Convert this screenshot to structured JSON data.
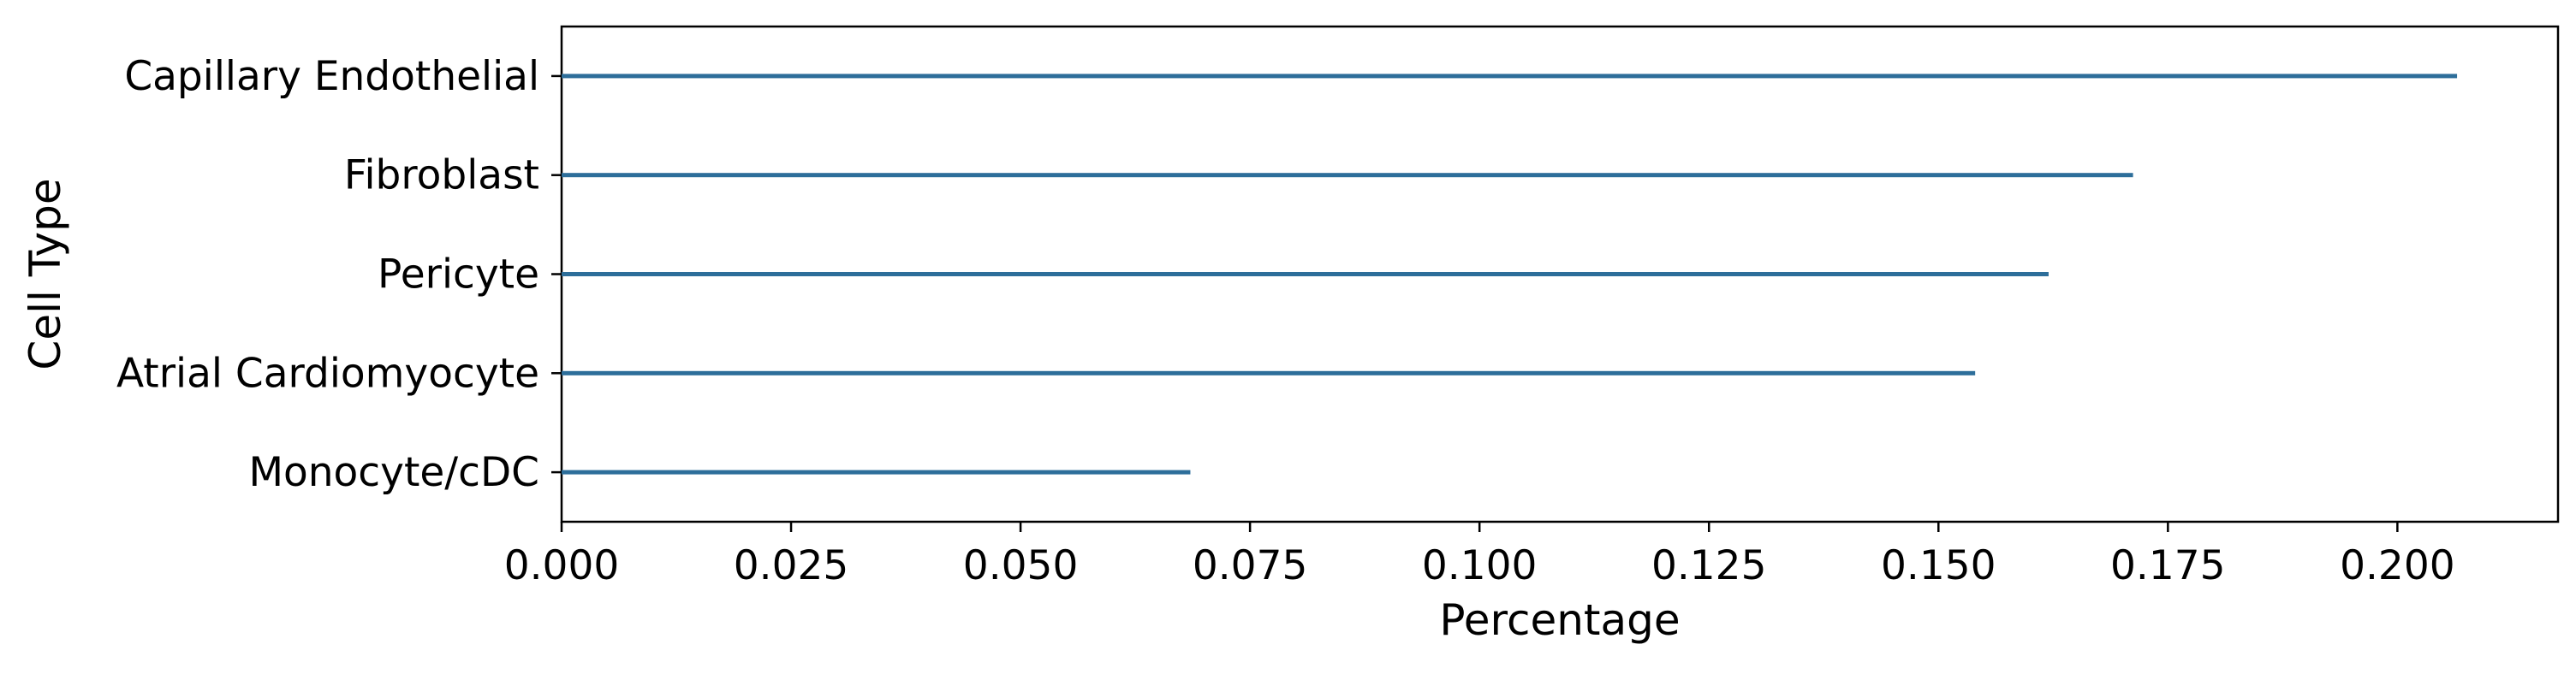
{
  "chart_data": {
    "type": "bar",
    "orientation": "horizontal",
    "title": "",
    "xlabel": "Percentage",
    "ylabel": "Cell Type",
    "xlim": [
      0,
      0.2175
    ],
    "xticks": [
      "0.000",
      "0.025",
      "0.050",
      "0.075",
      "0.100",
      "0.125",
      "0.150",
      "0.175",
      "0.200"
    ],
    "categories": [
      "Capillary Endothelial",
      "Fibroblast",
      "Pericyte",
      "Atrial Cardiomyocyte",
      "Monocyte/cDC"
    ],
    "values": [
      0.2065,
      0.1712,
      0.162,
      0.154,
      0.0685
    ],
    "bar_color": "#2d6e9a",
    "grid": false,
    "legend": "none"
  }
}
